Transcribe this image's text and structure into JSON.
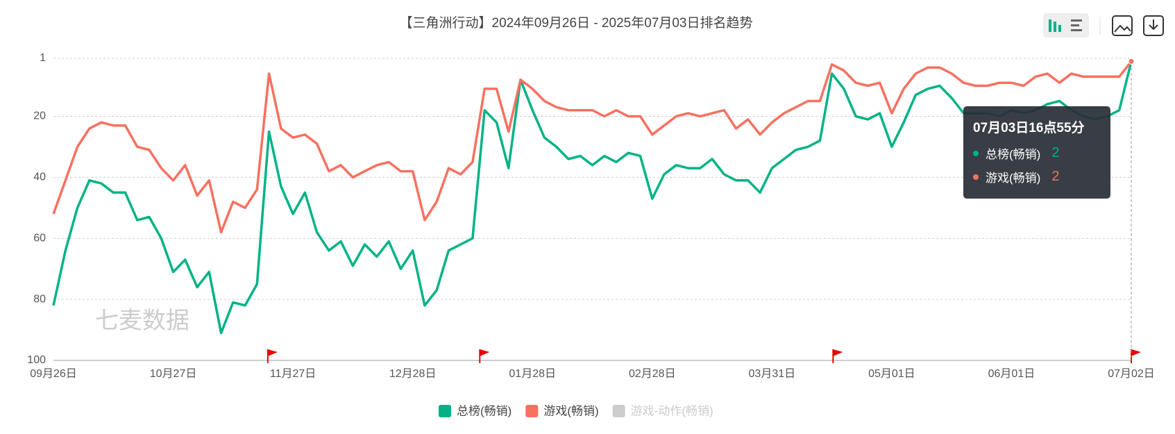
{
  "chart_data": {
    "type": "line",
    "title": "【三角洲行动】2024年09月26日 - 2025年07月03日排名趋势",
    "watermark": "七麦数据",
    "categories": [
      "09月26日",
      null,
      null,
      null,
      null,
      null,
      null,
      null,
      null,
      null,
      "10月27日",
      null,
      null,
      null,
      null,
      null,
      null,
      null,
      null,
      null,
      "11月27日",
      null,
      null,
      null,
      null,
      null,
      null,
      null,
      null,
      null,
      "12月28日",
      null,
      null,
      null,
      null,
      null,
      null,
      null,
      null,
      null,
      "01月28日",
      null,
      null,
      null,
      null,
      null,
      null,
      null,
      null,
      null,
      "02月28日",
      null,
      null,
      null,
      null,
      null,
      null,
      null,
      null,
      null,
      "03月31日",
      null,
      null,
      null,
      null,
      null,
      null,
      null,
      null,
      null,
      "05月01日",
      null,
      null,
      null,
      null,
      null,
      null,
      null,
      null,
      null,
      "06月01日",
      null,
      null,
      null,
      null,
      null,
      null,
      null,
      null,
      null,
      "07月02日"
    ],
    "series": [
      {
        "name": "总榜(畅销)",
        "color": "#00b386",
        "values": [
          82,
          64,
          50,
          41,
          42,
          45,
          45,
          54,
          53,
          60,
          71,
          67,
          76,
          71,
          91,
          81,
          82,
          75,
          25,
          43,
          52,
          45,
          58,
          64,
          61,
          69,
          62,
          66,
          61,
          70,
          64,
          82,
          77,
          64,
          62,
          60,
          18,
          22,
          37,
          8,
          18,
          27,
          30,
          34,
          33,
          36,
          33,
          35,
          32,
          33,
          47,
          39,
          36,
          37,
          37,
          34,
          39,
          41,
          41,
          45,
          37,
          34,
          31,
          30,
          28,
          6,
          11,
          20,
          21,
          19,
          30,
          22,
          13,
          11,
          10,
          14,
          19,
          19,
          19,
          20,
          18,
          19,
          18,
          16,
          15,
          18,
          20,
          21,
          20,
          18,
          2
        ]
      },
      {
        "name": "游戏(畅销)",
        "color": "#f87060",
        "values": [
          52,
          41,
          30,
          24,
          22,
          23,
          23,
          30,
          31,
          37,
          41,
          36,
          46,
          41,
          58,
          48,
          50,
          44,
          6,
          24,
          27,
          26,
          29,
          38,
          36,
          40,
          38,
          36,
          35,
          38,
          38,
          54,
          48,
          37,
          39,
          35,
          11,
          11,
          25,
          8,
          11,
          15,
          17,
          18,
          18,
          18,
          20,
          18,
          20,
          20,
          26,
          23,
          20,
          19,
          20,
          19,
          18,
          24,
          21,
          26,
          22,
          19,
          17,
          15,
          15,
          3,
          5,
          9,
          10,
          9,
          19,
          11,
          6,
          4,
          4,
          6,
          9,
          10,
          10,
          9,
          9,
          10,
          7,
          6,
          9,
          6,
          7,
          7,
          7,
          7,
          2
        ]
      }
    ],
    "hidden_series": [
      {
        "name": "游戏-动作(畅销)",
        "color": "#cccccc"
      }
    ],
    "ylim": [
      1,
      100
    ],
    "yticks": [
      1,
      20,
      40,
      60,
      80,
      100
    ],
    "y_inverted": true,
    "grid": true,
    "tooltip": {
      "title": "07月03日16点55分",
      "items": [
        {
          "name": "总榜(畅销)",
          "value": 2
        },
        {
          "name": "游戏(畅销)",
          "value": 2
        }
      ]
    }
  }
}
